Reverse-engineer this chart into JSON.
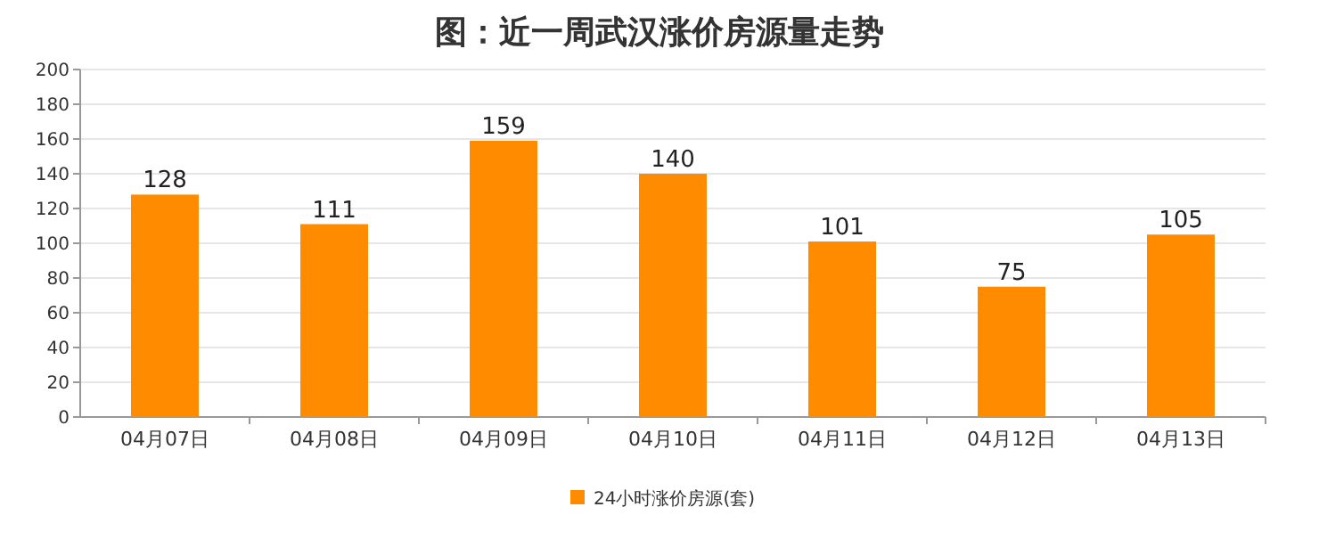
{
  "chart_data": {
    "type": "bar",
    "title": "图：近一周武汉涨价房源量走势",
    "categories": [
      "04月07日",
      "04月08日",
      "04月09日",
      "04月10日",
      "04月11日",
      "04月12日",
      "04月13日"
    ],
    "series": [
      {
        "name": "24小时涨价房源(套)",
        "color": "#ff8c00",
        "values": [
          128,
          111,
          159,
          140,
          101,
          75,
          105
        ]
      }
    ],
    "ylim": [
      0,
      200
    ],
    "yticks": [
      0,
      20,
      40,
      60,
      80,
      100,
      120,
      140,
      160,
      180,
      200
    ],
    "grid": "y",
    "legend": "bottom",
    "data_labels": true
  }
}
